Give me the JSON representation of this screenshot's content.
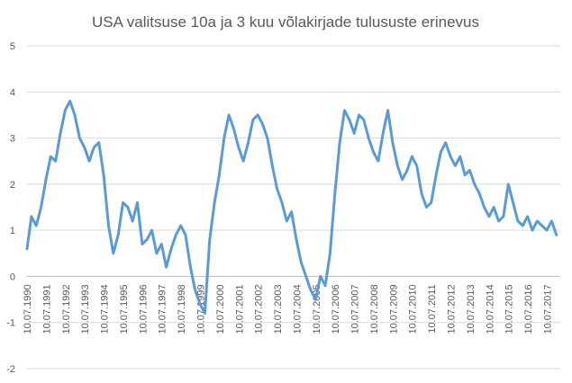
{
  "chart_data": {
    "type": "line",
    "title": "USA valitsuse 10a ja 3 kuu võlakirjade tulususte erinevus",
    "xlabel": "",
    "ylabel": "",
    "ylim": [
      -2,
      5
    ],
    "yticks": [
      -2,
      -1,
      0,
      1,
      2,
      3,
      4,
      5
    ],
    "grid": true,
    "legend": "none",
    "line_color": "#5b9bd5",
    "categories": [
      "10.07.1990",
      "10.07.1991",
      "10.07.1992",
      "10.07.1993",
      "10.07.1994",
      "10.07.1995",
      "10.07.1996",
      "10.07.1997",
      "10.07.1998",
      "10.07.1999",
      "10.07.2000",
      "10.07.2001",
      "10.07.2002",
      "10.07.2003",
      "10.07.2004",
      "10.07.2005",
      "10.07.2006",
      "10.07.2007",
      "10.07.2008",
      "10.07.2009",
      "10.07.2010",
      "10.07.2011",
      "10.07.2012",
      "10.07.2013",
      "10.07.2014",
      "10.07.2015",
      "10.07.2016",
      "10.07.2017"
    ],
    "series": [
      {
        "x": [
          1990.52,
          1990.75,
          1991.0,
          1991.25,
          1991.5,
          1991.75,
          1992.0,
          1992.25,
          1992.5,
          1992.75,
          1993.0,
          1993.25,
          1993.5,
          1993.75,
          1994.0,
          1994.25,
          1994.5,
          1994.75,
          1995.0,
          1995.25,
          1995.5,
          1995.75,
          1996.0,
          1996.25,
          1996.5,
          1996.75,
          1997.0,
          1997.25,
          1997.5,
          1997.75,
          1998.0,
          1998.25,
          1998.5,
          1998.75,
          1999.0,
          1999.25,
          1999.5,
          1999.75,
          2000.0,
          2000.25,
          2000.5,
          2000.75,
          2001.0,
          2001.25,
          2001.5,
          2001.75,
          2002.0,
          2002.25,
          2002.5,
          2002.75,
          2003.0,
          2003.25,
          2003.5,
          2003.75,
          2004.0,
          2004.25,
          2004.5,
          2004.75,
          2005.0,
          2005.25,
          2005.5,
          2005.75,
          2006.0,
          2006.25,
          2006.5,
          2006.75,
          2007.0,
          2007.25,
          2007.5,
          2007.75,
          2008.0,
          2008.25,
          2008.5,
          2008.75,
          2009.0,
          2009.25,
          2009.5,
          2009.75,
          2010.0,
          2010.25,
          2010.5,
          2010.75,
          2011.0,
          2011.25,
          2011.5,
          2011.75,
          2012.0,
          2012.25,
          2012.5,
          2012.75,
          2013.0,
          2013.25,
          2013.5,
          2013.75,
          2014.0,
          2014.25,
          2014.5,
          2014.75,
          2015.0,
          2015.25,
          2015.5,
          2015.75,
          2016.0,
          2016.25,
          2016.5,
          2016.75,
          2017.0,
          2017.25,
          2017.5,
          2017.75,
          2018.0
        ],
        "values": [
          0.6,
          1.3,
          1.1,
          1.5,
          2.1,
          2.6,
          2.5,
          3.1,
          3.6,
          3.8,
          3.5,
          3.0,
          2.8,
          2.5,
          2.8,
          2.9,
          2.2,
          1.1,
          0.5,
          0.9,
          1.6,
          1.5,
          1.2,
          1.6,
          0.7,
          0.8,
          1.0,
          0.5,
          0.7,
          0.2,
          0.6,
          0.9,
          1.1,
          0.9,
          0.2,
          -0.3,
          -0.6,
          -0.8,
          0.8,
          1.6,
          2.2,
          3.0,
          3.5,
          3.2,
          2.8,
          2.5,
          2.9,
          3.4,
          3.5,
          3.3,
          3.0,
          2.4,
          1.9,
          1.6,
          1.2,
          1.4,
          0.8,
          0.3,
          0.0,
          -0.3,
          -0.5,
          0.0,
          -0.2,
          0.5,
          1.8,
          2.9,
          3.6,
          3.4,
          3.1,
          3.5,
          3.4,
          3.0,
          2.7,
          2.5,
          3.1,
          3.6,
          2.9,
          2.4,
          2.1,
          2.3,
          2.6,
          2.4,
          1.8,
          1.5,
          1.6,
          2.2,
          2.7,
          2.9,
          2.6,
          2.4,
          2.6,
          2.2,
          2.3,
          2.0,
          1.8,
          1.5,
          1.3,
          1.5,
          1.2,
          1.3,
          2.0,
          1.6,
          1.2,
          1.1,
          1.3,
          1.0,
          1.2,
          1.1,
          1.0,
          1.2,
          0.9
        ]
      }
    ]
  }
}
